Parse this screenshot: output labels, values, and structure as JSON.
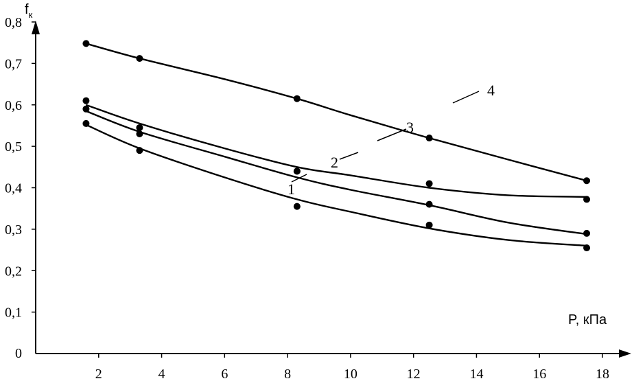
{
  "chart_data": {
    "type": "line",
    "title": "",
    "xlabel": "P, кПа",
    "ylabel": "fк",
    "ylabel_main": "f",
    "ylabel_sub": "к",
    "xlim": [
      0,
      18
    ],
    "ylim": [
      0,
      0.8
    ],
    "x_ticks": [
      2,
      4,
      6,
      8,
      10,
      12,
      14,
      16,
      18
    ],
    "x_tick_labels": [
      "2",
      "4",
      "6",
      "8",
      "10",
      "12",
      "14",
      "16",
      "18"
    ],
    "y_ticks": [
      0,
      0.1,
      0.2,
      0.3,
      0.4,
      0.5,
      0.6,
      0.7,
      0.8
    ],
    "y_tick_labels": [
      "0",
      "0,1",
      "0,2",
      "0,3",
      "0,4",
      "0,5",
      "0,6",
      "0,7",
      "0,8"
    ],
    "grid": false,
    "legend": "none",
    "series": [
      {
        "name": "1",
        "points_x": [
          1.6,
          3.3,
          8.3,
          12.5,
          17.5
        ],
        "points_y": [
          0.555,
          0.49,
          0.355,
          0.31,
          0.255
        ],
        "fit_x": [
          1.6,
          3.3,
          6,
          8.3,
          10,
          12.5,
          15,
          17.5
        ],
        "fit_y": [
          0.552,
          0.495,
          0.425,
          0.372,
          0.342,
          0.302,
          0.274,
          0.26
        ]
      },
      {
        "name": "2",
        "points_x": [
          1.6,
          3.3,
          8.3,
          12.5,
          17.5
        ],
        "points_y": [
          0.59,
          0.53,
          0.44,
          0.36,
          0.29
        ],
        "fit_x": [
          1.6,
          3.3,
          6,
          8.3,
          10,
          12.5,
          15,
          17.5
        ],
        "fit_y": [
          0.585,
          0.535,
          0.475,
          0.425,
          0.395,
          0.358,
          0.316,
          0.288
        ]
      },
      {
        "name": "3",
        "points_x": [
          1.6,
          3.3,
          8.3,
          12.5,
          17.5
        ],
        "points_y": [
          0.61,
          0.545,
          0.44,
          0.41,
          0.372
        ],
        "fit_x": [
          1.6,
          3.3,
          6,
          8.3,
          10,
          12.5,
          15,
          17.5
        ],
        "fit_y": [
          0.6,
          0.555,
          0.495,
          0.45,
          0.43,
          0.4,
          0.382,
          0.378
        ]
      },
      {
        "name": "4",
        "points_x": [
          1.6,
          3.3,
          8.3,
          12.5,
          17.5
        ],
        "points_y": [
          0.748,
          0.712,
          0.615,
          0.52,
          0.417
        ],
        "fit_x": [
          1.6,
          3.3,
          6,
          8.3,
          10,
          12.5,
          15,
          17.5
        ],
        "fit_y": [
          0.748,
          0.712,
          0.662,
          0.615,
          0.575,
          0.52,
          0.468,
          0.417
        ]
      }
    ]
  }
}
